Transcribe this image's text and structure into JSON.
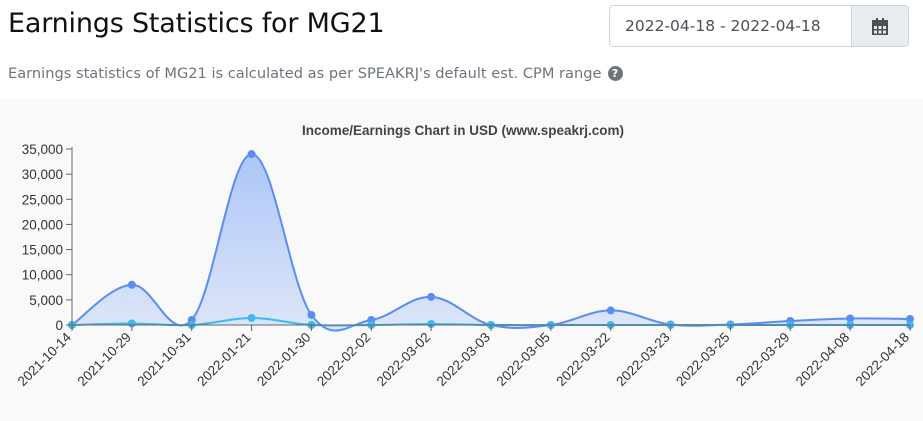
{
  "header": {
    "title": "Earnings Statistics for MG21",
    "subtitle": "Earnings statistics of MG21 is calculated as per SPEAKRJ's default est. CPM range",
    "help_icon": "question-circle-icon"
  },
  "date_range": {
    "value": "2022-04-18 - 2022-04-18",
    "button_icon": "calendar-icon"
  },
  "chart_data": {
    "type": "area",
    "title": "Income/Earnings Chart in USD (www.speakrj.com)",
    "xlabel": "",
    "ylabel": "",
    "ylim": [
      0,
      35000
    ],
    "yticks": [
      0,
      5000,
      10000,
      15000,
      20000,
      25000,
      30000,
      35000
    ],
    "ytick_labels": [
      "0",
      "5,000",
      "10,000",
      "15,000",
      "20,000",
      "25,000",
      "30,000",
      "35,000"
    ],
    "grid": false,
    "legend": "none",
    "categories": [
      "2021-10-14",
      "2021-10-29",
      "2021-10-31",
      "2022-01-21",
      "2022-01-30",
      "2022-02-02",
      "2022-03-02",
      "2022-03-03",
      "2022-03-05",
      "2022-03-22",
      "2022-03-23",
      "2022-03-25",
      "2022-03-29",
      "2022-04-08",
      "2022-04-18"
    ],
    "series": [
      {
        "color": "#5b8def",
        "fill": "#a9c3f7",
        "values": [
          0,
          8000,
          1000,
          34000,
          2000,
          1000,
          5600,
          0,
          0,
          2900,
          100,
          100,
          800,
          1300,
          1200
        ]
      },
      {
        "color": "#3fb7f0",
        "fill": "#c8e9fb",
        "values": [
          0,
          300,
          0,
          1400,
          0,
          0,
          200,
          0,
          0,
          0,
          0,
          0,
          0,
          0,
          0
        ]
      }
    ]
  }
}
